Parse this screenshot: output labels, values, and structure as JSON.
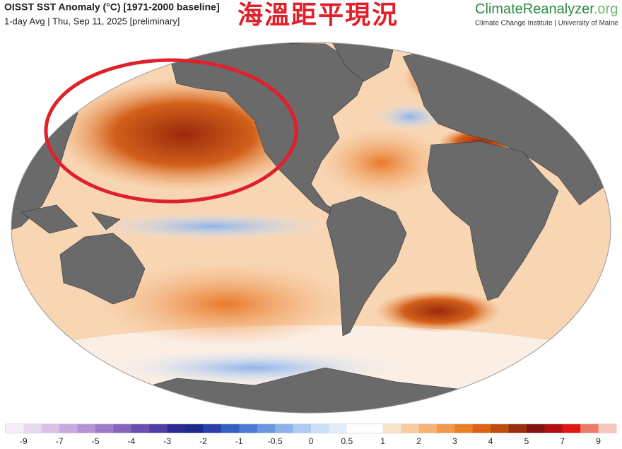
{
  "header": {
    "title": "OISST SST Anomaly (°C) [1971-2000 baseline]",
    "subtitle": "1-day Avg | Thu, Sep 11, 2025 [preliminary]",
    "overlay": "海溫距平現況"
  },
  "logo": {
    "name": "ClimateReanalyzer",
    "suffix": ".org",
    "tagline": "Climate Change Institute | University of Maine"
  },
  "colorbar": {
    "colors": [
      "#f6eef6",
      "#e8d8ee",
      "#d9c2e6",
      "#c8a9de",
      "#b592d6",
      "#9e7acb",
      "#8464bf",
      "#6a4eb2",
      "#4f3ea4",
      "#2c2c94",
      "#1d2a8c",
      "#2840a8",
      "#3460c4",
      "#4a7ad4",
      "#6a96e2",
      "#8cb2ec",
      "#aecbf2",
      "#cadff7",
      "#e2edfa",
      "#ffffff",
      "#ffffff",
      "#fbe4cc",
      "#f8cc9e",
      "#f5b273",
      "#f2984c",
      "#ec7e26",
      "#dc6418",
      "#c04c12",
      "#9c2c0e",
      "#801410",
      "#b01010",
      "#e01616",
      "#f07a6a",
      "#f8c8bc"
    ],
    "ticks": [
      -9,
      -7,
      -5,
      -4,
      -3,
      -2,
      -1,
      -0.5,
      0,
      0.5,
      1,
      2,
      3,
      4,
      5,
      7,
      9
    ]
  }
}
